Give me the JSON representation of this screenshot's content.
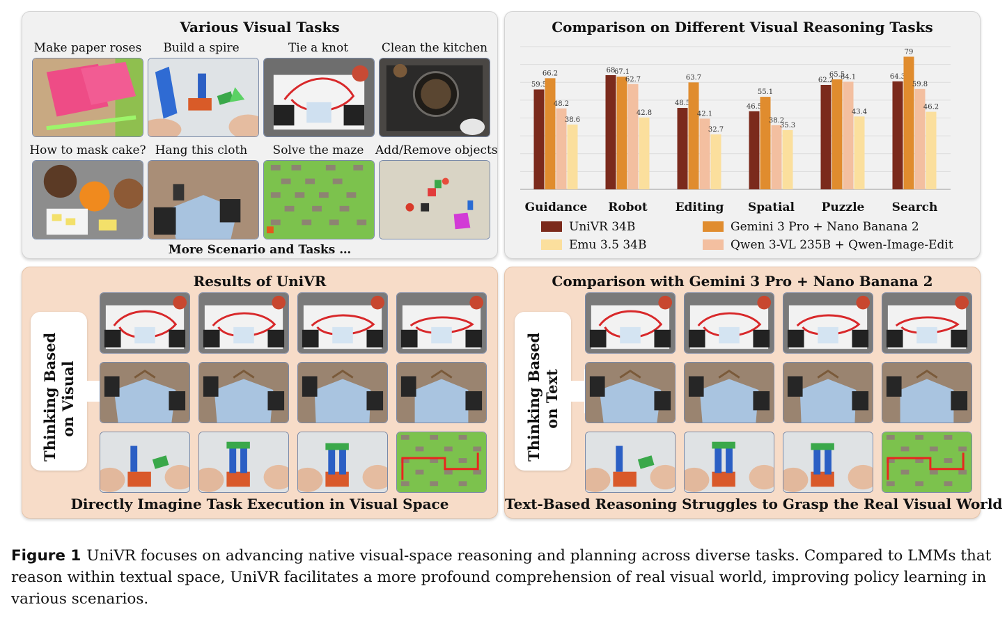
{
  "top_left": {
    "title": "Various Visual Tasks",
    "tasks": [
      {
        "label": "Make paper roses",
        "icon": "paper-roses-photo"
      },
      {
        "label": "Build a spire",
        "icon": "blocks-spire-photo"
      },
      {
        "label": "Tie a knot",
        "icon": "robot-knot-photo"
      },
      {
        "label": "Clean the kitchen",
        "icon": "kitchen-pan-photo"
      },
      {
        "label": "How to mask cake?",
        "icon": "cake-ingredients-photo"
      },
      {
        "label": "Hang this cloth",
        "icon": "robot-shirt-photo"
      },
      {
        "label": "Solve the maze",
        "icon": "pixel-maze-image"
      },
      {
        "label": "Add/Remove objects",
        "icon": "tabletop-objects-render"
      }
    ],
    "footer": "More Scenario and Tasks …"
  },
  "top_right": {
    "title": "Comparison on Different Visual Reasoning Tasks"
  },
  "chart_data": {
    "type": "bar",
    "title": "Comparison on Different Visual Reasoning Tasks",
    "categories": [
      "Guidance",
      "Robot",
      "Editing",
      "Spatial",
      "Puzzle",
      "Search"
    ],
    "series": [
      {
        "name": "UniVR 34B",
        "color": "#7b2a1c",
        "values": [
          59.5,
          68,
          48.5,
          46.5,
          62.2,
          64.3
        ]
      },
      {
        "name": "Gemini 3 Pro + Nano Banana 2",
        "color": "#e08c2e",
        "values": [
          66.2,
          67.1,
          63.7,
          55.1,
          65.5,
          79
        ]
      },
      {
        "name": "Qwen 3-VL 235B + Qwen-Image-Edit",
        "color": "#f3bfa0",
        "values": [
          48.2,
          62.7,
          42.1,
          38.2,
          64.1,
          59.8
        ]
      },
      {
        "name": "Emu 3.5 34B",
        "color": "#fbdf9d",
        "values": [
          38.6,
          42.8,
          32.7,
          35.3,
          43.4,
          46.2
        ]
      }
    ],
    "value_labels": [
      [
        "59.5",
        "68",
        "48.5",
        "46.5",
        "62.2",
        "64.3"
      ],
      [
        "66.2",
        "67.1",
        "63.7",
        "55.1",
        "65.5",
        "79"
      ],
      [
        "48.2",
        "62.7",
        "42.1",
        "38.2",
        "64.1",
        "59.8"
      ],
      [
        "38.6",
        "42.8",
        "32.7",
        "35.3",
        "43.4",
        "46.2"
      ]
    ],
    "legend": {
      "placement": "bottom",
      "left_column": [
        "UniVR 34B",
        "Emu 3.5 34B"
      ],
      "right_column": [
        "Gemini 3 Pro + Nano Banana 2",
        "Qwen 3-VL 235B + Qwen-Image-Edit"
      ]
    },
    "ylim": [
      0,
      85
    ],
    "grid": "horizontal"
  },
  "bottom_left": {
    "title": "Results of UniVR",
    "side_label_line1": "Thinking Based",
    "side_label_line2": "on Visual",
    "footer": "Directly Imagine Task Execution in Visual Space"
  },
  "bottom_right": {
    "title": "Comparison with Gemini 3 Pro + Nano Banana 2",
    "side_label_line1": "Thinking Based",
    "side_label_line2": "on Text",
    "footer": "Text-Based Reasoning Struggles to Grasp the Real Visual World"
  },
  "caption": {
    "label": "Figure 1",
    "text": "UniVR focuses on advancing native visual-space reasoning and planning across diverse tasks. Compared to LMMs that reason within textual space, UniVR facilitates a more profound comprehension of real visual world, improving policy learning in various scenarios."
  }
}
